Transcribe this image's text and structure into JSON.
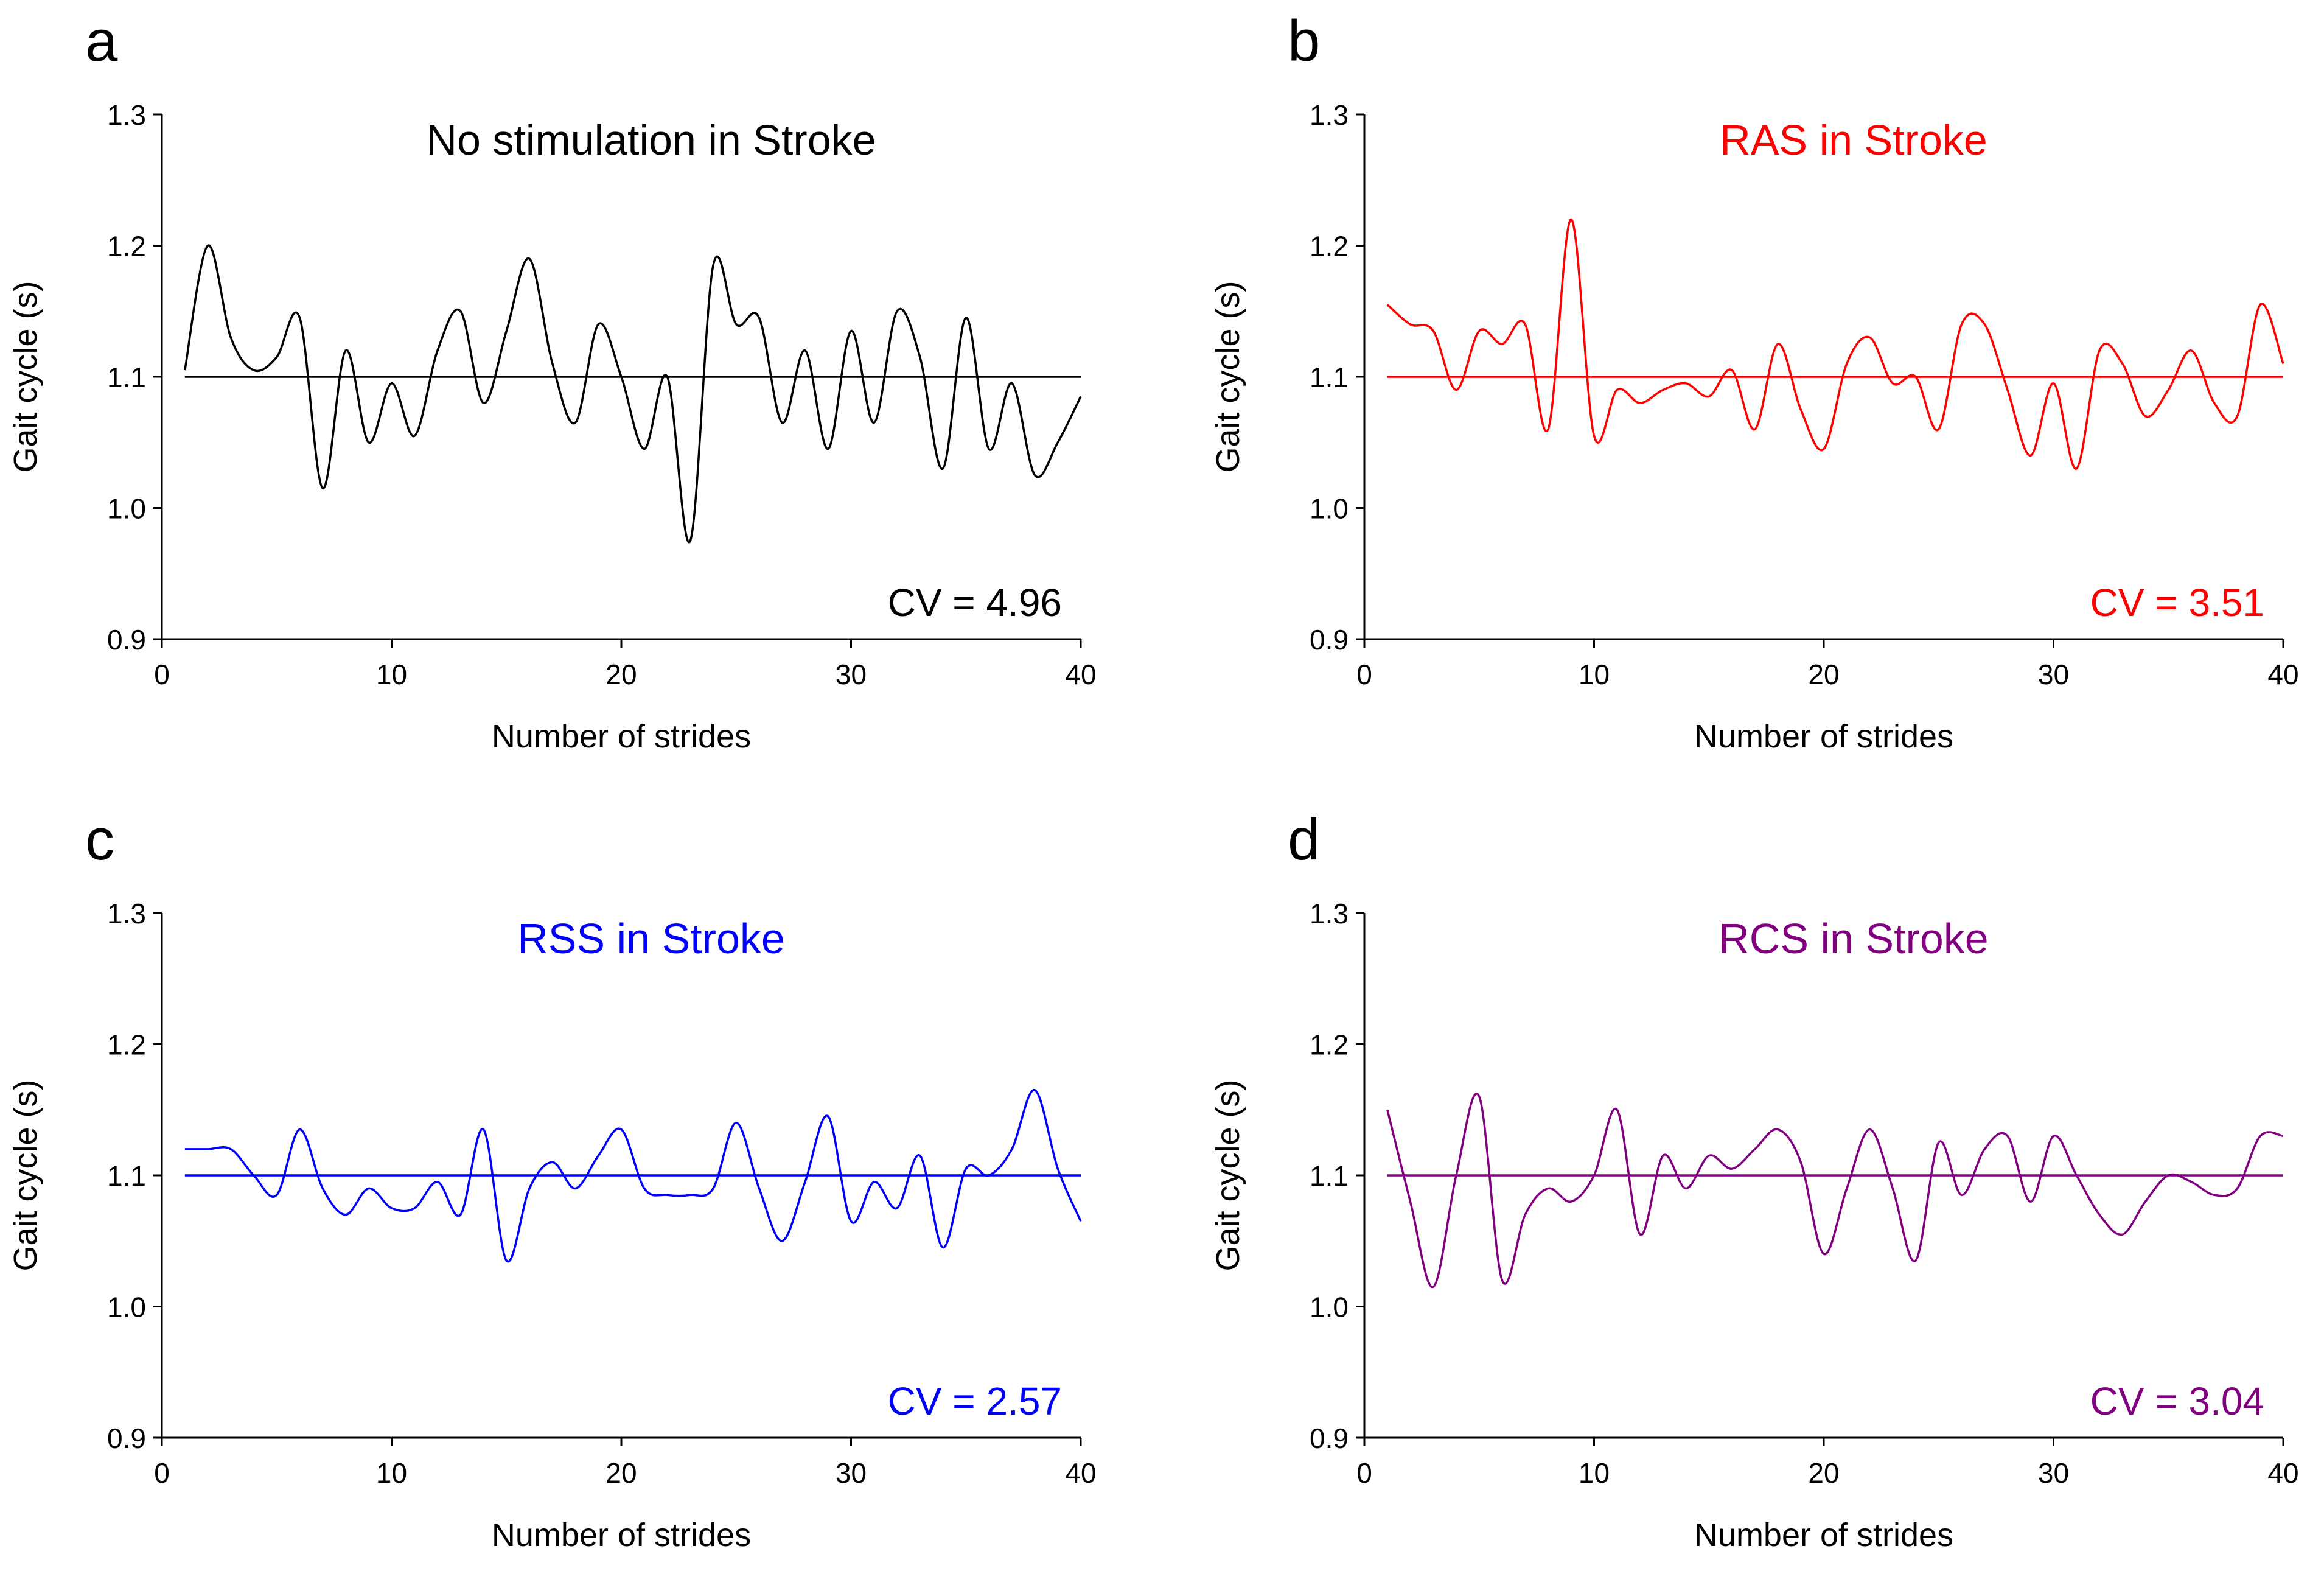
{
  "chart_data": [
    {
      "type": "line",
      "panel_letter": "a",
      "title": "No stimulation in Stroke",
      "xlabel": "Number of strides",
      "ylabel": "Gait cycle (s)",
      "xlim": [
        0,
        40
      ],
      "ylim": [
        0.9,
        1.3
      ],
      "xticks": [
        "0",
        "10",
        "20",
        "30",
        "40"
      ],
      "yticks": [
        "0.9",
        "1.0",
        "1.1",
        "1.2",
        "1.3"
      ],
      "color": "#000000",
      "annotation": "CV = 4.96",
      "reference_value": 1.1,
      "x": [
        1,
        2,
        3,
        4,
        5,
        6,
        7,
        8,
        9,
        10,
        11,
        12,
        13,
        14,
        15,
        16,
        17,
        18,
        19,
        20,
        21,
        22,
        23,
        24,
        25,
        26,
        27,
        28,
        29,
        30,
        31,
        32,
        33,
        34,
        35,
        36,
        37,
        38,
        39,
        40
      ],
      "values": [
        1.105,
        1.2,
        1.13,
        1.105,
        1.115,
        1.145,
        1.015,
        1.12,
        1.05,
        1.095,
        1.055,
        1.12,
        1.15,
        1.08,
        1.135,
        1.19,
        1.11,
        1.065,
        1.14,
        1.1,
        1.045,
        1.1,
        0.975,
        1.185,
        1.14,
        1.145,
        1.065,
        1.12,
        1.045,
        1.135,
        1.065,
        1.15,
        1.115,
        1.03,
        1.145,
        1.045,
        1.095,
        1.025,
        1.05,
        1.085
      ]
    },
    {
      "type": "line",
      "panel_letter": "b",
      "title": "RAS in Stroke",
      "xlabel": "Number of strides",
      "ylabel": "Gait cycle (s)",
      "xlim": [
        0,
        40
      ],
      "ylim": [
        0.9,
        1.3
      ],
      "xticks": [
        "0",
        "10",
        "20",
        "30",
        "40"
      ],
      "yticks": [
        "0.9",
        "1.0",
        "1.1",
        "1.2",
        "1.3"
      ],
      "color": "#ff0000",
      "annotation": "CV = 3.51",
      "reference_value": 1.1,
      "x": [
        1,
        2,
        3,
        4,
        5,
        6,
        7,
        8,
        9,
        10,
        11,
        12,
        13,
        14,
        15,
        16,
        17,
        18,
        19,
        20,
        21,
        22,
        23,
        24,
        25,
        26,
        27,
        28,
        29,
        30,
        31,
        32,
        33,
        34,
        35,
        36,
        37,
        38,
        39,
        40
      ],
      "values": [
        1.155,
        1.14,
        1.135,
        1.09,
        1.135,
        1.125,
        1.14,
        1.06,
        1.22,
        1.055,
        1.09,
        1.08,
        1.09,
        1.095,
        1.085,
        1.105,
        1.06,
        1.125,
        1.075,
        1.045,
        1.11,
        1.13,
        1.095,
        1.1,
        1.06,
        1.14,
        1.14,
        1.09,
        1.04,
        1.095,
        1.03,
        1.12,
        1.11,
        1.07,
        1.09,
        1.12,
        1.08,
        1.07,
        1.155,
        1.11
      ]
    },
    {
      "type": "line",
      "panel_letter": "c",
      "title": "RSS in Stroke",
      "xlabel": "Number of strides",
      "ylabel": "Gait cycle (s)",
      "xlim": [
        0,
        40
      ],
      "ylim": [
        0.9,
        1.3
      ],
      "xticks": [
        "0",
        "10",
        "20",
        "30",
        "40"
      ],
      "yticks": [
        "0.9",
        "1.0",
        "1.1",
        "1.2",
        "1.3"
      ],
      "color": "#0000ff",
      "annotation": "CV = 2.57",
      "reference_value": 1.1,
      "x": [
        1,
        2,
        3,
        4,
        5,
        6,
        7,
        8,
        9,
        10,
        11,
        12,
        13,
        14,
        15,
        16,
        17,
        18,
        19,
        20,
        21,
        22,
        23,
        24,
        25,
        26,
        27,
        28,
        29,
        30,
        31,
        32,
        33,
        34,
        35,
        36,
        37,
        38,
        39,
        40
      ],
      "values": [
        1.12,
        1.12,
        1.12,
        1.1,
        1.085,
        1.135,
        1.09,
        1.07,
        1.09,
        1.075,
        1.075,
        1.095,
        1.07,
        1.135,
        1.035,
        1.09,
        1.11,
        1.09,
        1.115,
        1.135,
        1.09,
        1.085,
        1.085,
        1.09,
        1.14,
        1.09,
        1.05,
        1.095,
        1.145,
        1.065,
        1.095,
        1.075,
        1.115,
        1.045,
        1.105,
        1.1,
        1.12,
        1.165,
        1.105,
        1.065
      ]
    },
    {
      "type": "line",
      "panel_letter": "d",
      "title": "RCS in Stroke",
      "xlabel": "Number of strides",
      "ylabel": "Gait cycle (s)",
      "xlim": [
        0,
        40
      ],
      "ylim": [
        0.9,
        1.3
      ],
      "xticks": [
        "0",
        "10",
        "20",
        "30",
        "40"
      ],
      "yticks": [
        "0.9",
        "1.0",
        "1.1",
        "1.2",
        "1.3"
      ],
      "color": "#800080",
      "annotation": "CV = 3.04",
      "reference_value": 1.1,
      "x": [
        1,
        2,
        3,
        4,
        5,
        6,
        7,
        8,
        9,
        10,
        11,
        12,
        13,
        14,
        15,
        16,
        17,
        18,
        19,
        20,
        21,
        22,
        23,
        24,
        25,
        26,
        27,
        28,
        29,
        30,
        31,
        32,
        33,
        34,
        35,
        36,
        37,
        38,
        39,
        40
      ],
      "values": [
        1.15,
        1.08,
        1.015,
        1.1,
        1.16,
        1.02,
        1.07,
        1.09,
        1.08,
        1.1,
        1.15,
        1.055,
        1.115,
        1.09,
        1.115,
        1.105,
        1.12,
        1.135,
        1.11,
        1.04,
        1.09,
        1.135,
        1.09,
        1.035,
        1.125,
        1.085,
        1.12,
        1.13,
        1.08,
        1.13,
        1.1,
        1.07,
        1.055,
        1.08,
        1.1,
        1.095,
        1.085,
        1.09,
        1.13,
        1.13
      ]
    }
  ]
}
